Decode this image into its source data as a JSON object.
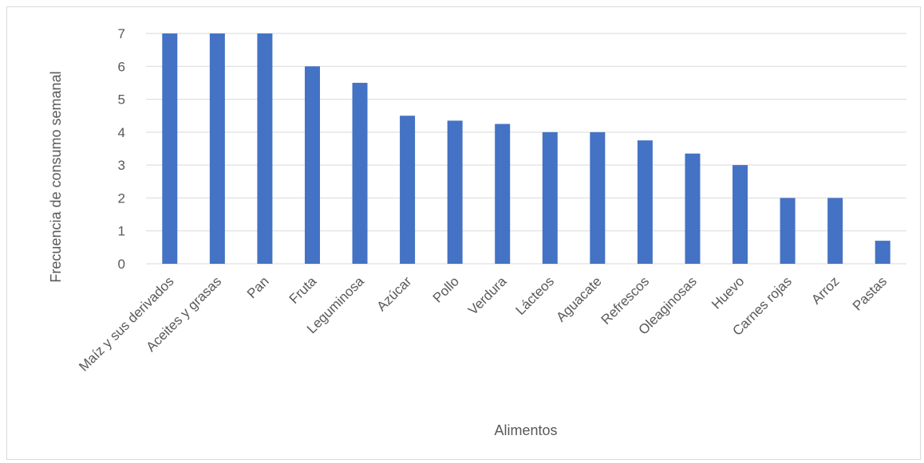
{
  "chart_data": {
    "type": "bar",
    "title": "",
    "xlabel": "Alimentos",
    "ylabel": "Frecuencia de consumo semanal",
    "categories": [
      "Maíz y sus derivados",
      "Aceites y grasas",
      "Pan",
      "Fruta",
      "Leguminosa",
      "Azúcar",
      "Pollo",
      "Verdura",
      "Lácteos",
      "Aguacate",
      "Refrescos",
      "Oleaginosas",
      "Huevo",
      "Carnes rojas",
      "Arroz",
      "Pastas"
    ],
    "values": [
      7,
      7,
      7,
      6,
      5.5,
      4.5,
      4.35,
      4.25,
      4,
      4,
      3.75,
      3.35,
      3,
      2,
      2,
      0.7
    ],
    "ylim": [
      0,
      7
    ],
    "yticks": [
      "0",
      "1",
      "2",
      "3",
      "4",
      "5",
      "6",
      "7"
    ],
    "grid": true,
    "legend": "none",
    "colors": {
      "bar": "#4472C4",
      "grid": "#d9d9d9",
      "text": "#595959"
    }
  }
}
